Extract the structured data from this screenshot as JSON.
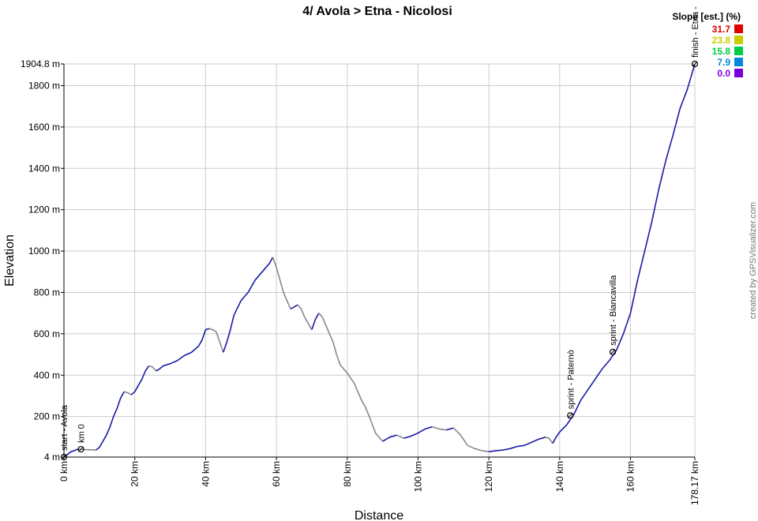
{
  "chart_data": {
    "type": "line",
    "title": "4/ Avola > Etna - Nicolosi",
    "xlabel": "Distance",
    "ylabel": "Elevation",
    "credit": "created by GPSVisualizer.com",
    "xlim": [
      0,
      178.17
    ],
    "ylim": [
      4,
      1904.8
    ],
    "grid": true,
    "x_ticks": [
      {
        "value": 0,
        "label": "0 km"
      },
      {
        "value": 20,
        "label": "20 km"
      },
      {
        "value": 40,
        "label": "40 km"
      },
      {
        "value": 60,
        "label": "60 km"
      },
      {
        "value": 80,
        "label": "80 km"
      },
      {
        "value": 100,
        "label": "100 km"
      },
      {
        "value": 120,
        "label": "120 km"
      },
      {
        "value": 140,
        "label": "140 km"
      },
      {
        "value": 160,
        "label": "160 km"
      },
      {
        "value": 178.17,
        "label": "178.17 km"
      }
    ],
    "y_ticks": [
      {
        "value": 4,
        "label": "4 m"
      },
      {
        "value": 200,
        "label": "200 m"
      },
      {
        "value": 400,
        "label": "400 m"
      },
      {
        "value": 600,
        "label": "600 m"
      },
      {
        "value": 800,
        "label": "800 m"
      },
      {
        "value": 1000,
        "label": "1000 m"
      },
      {
        "value": 1200,
        "label": "1200 m"
      },
      {
        "value": 1400,
        "label": "1400 m"
      },
      {
        "value": 1600,
        "label": "1600 m"
      },
      {
        "value": 1800,
        "label": "1800 m"
      },
      {
        "value": 1904.8,
        "label": "1904.8 m"
      }
    ],
    "legend": {
      "title": "Slope [est.] (%)",
      "placement": "top-right",
      "entries": [
        {
          "label": "31.7",
          "color": "#e00000"
        },
        {
          "label": "23.8",
          "color": "#cccc00"
        },
        {
          "label": "15.8",
          "color": "#00cc44"
        },
        {
          "label": "7.9",
          "color": "#0088dd"
        },
        {
          "label": "0.0",
          "color": "#7700dd"
        }
      ]
    },
    "colors": {
      "climb": "#1a1aa8",
      "descent": "#888888",
      "grid": "#cccccc"
    },
    "waypoints": [
      {
        "x": 0,
        "y": 4,
        "label": "start - Avola"
      },
      {
        "x": 4.8,
        "y": 42,
        "label": "km 0"
      },
      {
        "x": 143.0,
        "y": 205,
        "label": "sprint - Paternò"
      },
      {
        "x": 155.0,
        "y": 512,
        "label": "sprint - Biancavilla"
      },
      {
        "x": 178.17,
        "y": 1904.8,
        "label": "finish - Etna -"
      }
    ],
    "series": [
      {
        "x": [
          0,
          2,
          4,
          6,
          9,
          10,
          11,
          12,
          13,
          14,
          15,
          16,
          17,
          18,
          19,
          20,
          21,
          22,
          23,
          24,
          25,
          26,
          27,
          28,
          30,
          32,
          34,
          36,
          38,
          39,
          40,
          41,
          42,
          43,
          44,
          45,
          46,
          47,
          48,
          50,
          52,
          54,
          56,
          58,
          59,
          60,
          61,
          62,
          63,
          64,
          65,
          66,
          67,
          68,
          69,
          70,
          71,
          72,
          73,
          74,
          75,
          76,
          77,
          78,
          79,
          80,
          82,
          84,
          85,
          86,
          88,
          90,
          92,
          94,
          96,
          98,
          100,
          102,
          104,
          106,
          108,
          110,
          112,
          114,
          116,
          118,
          120,
          122,
          124,
          126,
          128,
          130,
          132,
          134,
          136,
          137,
          138,
          139,
          140,
          142,
          144,
          146,
          148,
          150,
          152,
          154,
          156,
          158,
          160,
          162,
          164,
          166,
          168,
          169,
          170,
          172,
          174,
          176,
          178.17
        ],
        "y": [
          4,
          30,
          42,
          40,
          38,
          50,
          80,
          110,
          150,
          200,
          240,
          290,
          320,
          315,
          305,
          320,
          350,
          380,
          420,
          445,
          440,
          420,
          430,
          445,
          455,
          470,
          495,
          510,
          540,
          570,
          620,
          625,
          620,
          610,
          560,
          510,
          560,
          620,
          690,
          760,
          800,
          860,
          900,
          940,
          970,
          920,
          860,
          800,
          760,
          720,
          730,
          740,
          720,
          680,
          650,
          620,
          670,
          700,
          680,
          640,
          600,
          560,
          500,
          450,
          430,
          410,
          360,
          280,
          250,
          210,
          120,
          80,
          100,
          110,
          95,
          105,
          120,
          140,
          150,
          140,
          135,
          145,
          110,
          60,
          45,
          35,
          30,
          35,
          38,
          45,
          55,
          60,
          75,
          90,
          100,
          95,
          70,
          100,
          125,
          160,
          210,
          280,
          330,
          380,
          430,
          470,
          520,
          600,
          700,
          860,
          1000,
          1140,
          1300,
          1370,
          1440,
          1560,
          1690,
          1780,
          1904.8
        ]
      }
    ]
  }
}
